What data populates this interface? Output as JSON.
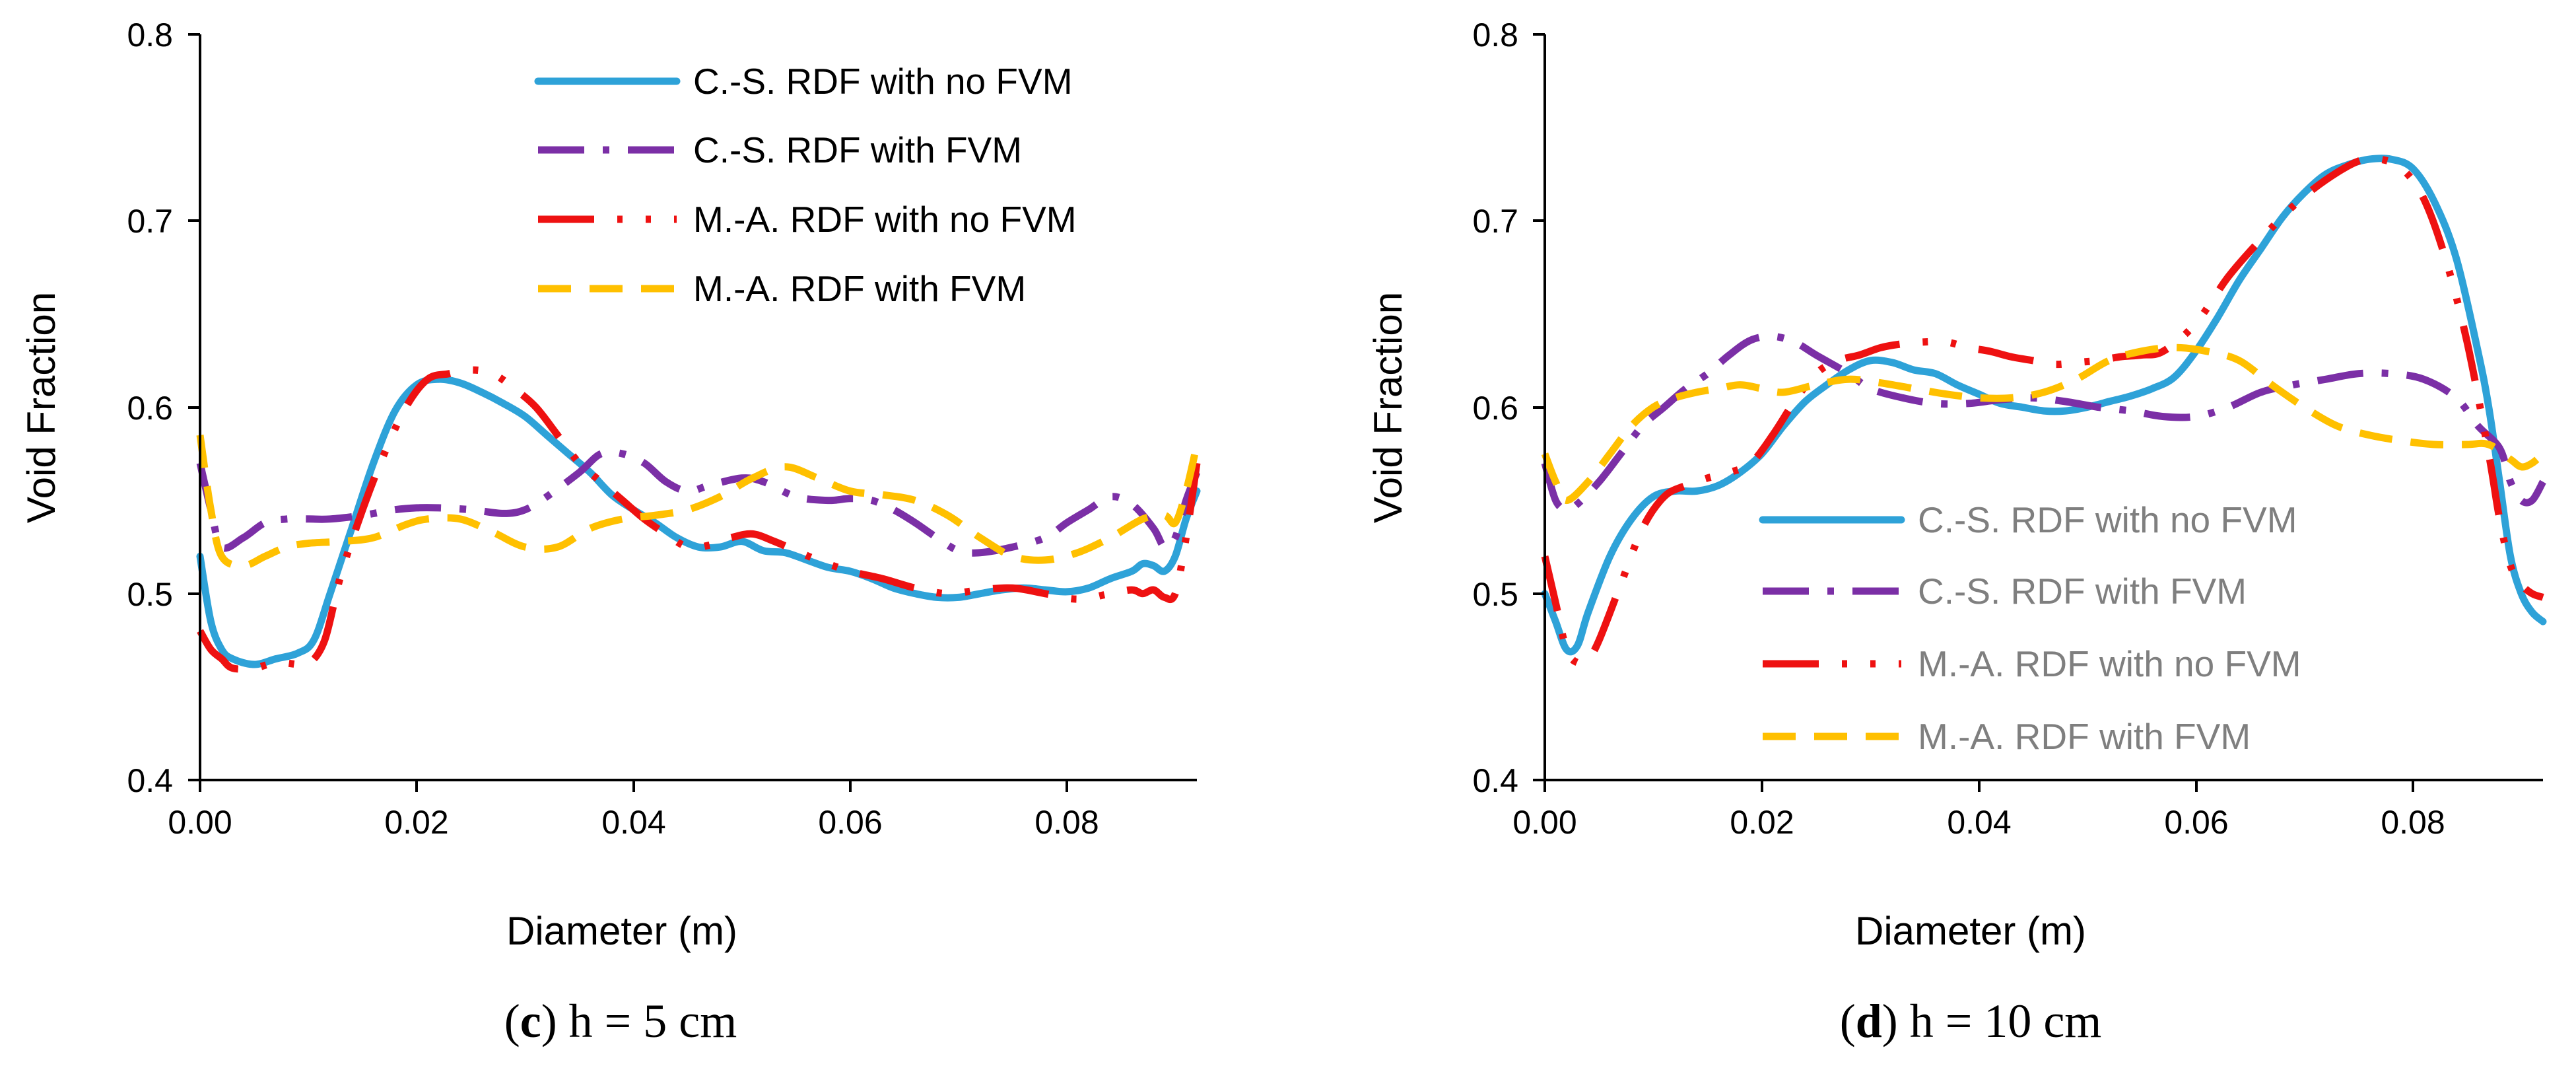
{
  "colors": {
    "cs_no_fvm": "#2ea2d8",
    "cs_fvm": "#7b2fa6",
    "ma_no_fvm": "#ee1111",
    "ma_fvm": "#ffc000",
    "axis": "#000000",
    "legend_text_d": "#7f7f7f"
  },
  "chart_data": [
    {
      "type": "line",
      "caption_letter": "c",
      "caption_rest": " h = 5 cm",
      "xlabel": "Diameter (m)",
      "ylabel": "Void Fraction",
      "xlim": [
        0,
        0.092
      ],
      "ylim": [
        0.4,
        0.8
      ],
      "xticks": [
        0,
        0.02,
        0.04,
        0.06,
        0.08
      ],
      "xtick_labels": [
        "0.00",
        "0.02",
        "0.04",
        "0.06",
        "0.08"
      ],
      "yticks": [
        0.4,
        0.5,
        0.6,
        0.7,
        0.8
      ],
      "ytick_labels": [
        "0.4",
        "0.5",
        "0.6",
        "0.7",
        "0.8"
      ],
      "legend_position": "top-right",
      "series": [
        {
          "name": "C.-S. RDF with no FVM",
          "style": "solid",
          "color_key": "cs_no_fvm",
          "x": [
            0,
            0.001,
            0.002,
            0.003,
            0.005,
            0.007,
            0.009,
            0.0105,
            0.012,
            0.014,
            0.016,
            0.018,
            0.02,
            0.022,
            0.024,
            0.026,
            0.028,
            0.03,
            0.032,
            0.034,
            0.036,
            0.038,
            0.04,
            0.042,
            0.044,
            0.046,
            0.048,
            0.05,
            0.052,
            0.054,
            0.056,
            0.058,
            0.06,
            0.062,
            0.064,
            0.066,
            0.068,
            0.07,
            0.072,
            0.074,
            0.076,
            0.078,
            0.08,
            0.082,
            0.084,
            0.086,
            0.087,
            0.088,
            0.089,
            0.09,
            0.091,
            0.092
          ],
          "y": [
            0.52,
            0.485,
            0.47,
            0.465,
            0.462,
            0.465,
            0.468,
            0.475,
            0.5,
            0.535,
            0.57,
            0.598,
            0.612,
            0.615,
            0.613,
            0.608,
            0.602,
            0.595,
            0.585,
            0.575,
            0.565,
            0.553,
            0.545,
            0.538,
            0.53,
            0.525,
            0.525,
            0.528,
            0.523,
            0.522,
            0.518,
            0.514,
            0.512,
            0.508,
            0.503,
            0.5,
            0.498,
            0.498,
            0.5,
            0.502,
            0.503,
            0.502,
            0.501,
            0.503,
            0.508,
            0.512,
            0.516,
            0.515,
            0.512,
            0.52,
            0.54,
            0.555
          ]
        },
        {
          "name": "C.-S. RDF with FVM",
          "style": "dashdot",
          "color_key": "cs_fvm",
          "x": [
            0,
            0.001,
            0.002,
            0.004,
            0.006,
            0.008,
            0.01,
            0.012,
            0.015,
            0.018,
            0.02,
            0.022,
            0.025,
            0.028,
            0.03,
            0.032,
            0.035,
            0.037,
            0.039,
            0.041,
            0.043,
            0.045,
            0.047,
            0.05,
            0.052,
            0.055,
            0.058,
            0.06,
            0.062,
            0.064,
            0.066,
            0.068,
            0.07,
            0.072,
            0.075,
            0.078,
            0.08,
            0.082,
            0.084,
            0.086,
            0.088,
            0.089,
            0.09,
            0.091,
            0.092
          ],
          "y": [
            0.57,
            0.545,
            0.525,
            0.53,
            0.538,
            0.54,
            0.54,
            0.54,
            0.542,
            0.545,
            0.546,
            0.546,
            0.545,
            0.543,
            0.545,
            0.552,
            0.565,
            0.575,
            0.575,
            0.57,
            0.56,
            0.555,
            0.558,
            0.562,
            0.56,
            0.552,
            0.55,
            0.551,
            0.55,
            0.545,
            0.538,
            0.53,
            0.523,
            0.522,
            0.525,
            0.53,
            0.538,
            0.545,
            0.552,
            0.548,
            0.535,
            0.525,
            0.53,
            0.55,
            0.565
          ]
        },
        {
          "name": "M.-A. RDF with no FVM",
          "style": "longdashdot",
          "color_key": "ma_no_fvm",
          "x": [
            0,
            0.001,
            0.002,
            0.003,
            0.005,
            0.007,
            0.009,
            0.01,
            0.0115,
            0.013,
            0.015,
            0.017,
            0.019,
            0.021,
            0.023,
            0.025,
            0.027,
            0.029,
            0.031,
            0.033,
            0.035,
            0.037,
            0.039,
            0.041,
            0.043,
            0.045,
            0.047,
            0.049,
            0.051,
            0.053,
            0.055,
            0.057,
            0.06,
            0.063,
            0.066,
            0.069,
            0.072,
            0.075,
            0.078,
            0.081,
            0.084,
            0.086,
            0.087,
            0.088,
            0.089,
            0.09,
            0.091,
            0.092
          ],
          "y": [
            0.48,
            0.47,
            0.465,
            0.46,
            0.46,
            0.463,
            0.462,
            0.462,
            0.475,
            0.51,
            0.545,
            0.575,
            0.6,
            0.615,
            0.618,
            0.62,
            0.618,
            0.61,
            0.6,
            0.585,
            0.57,
            0.56,
            0.55,
            0.54,
            0.532,
            0.525,
            0.526,
            0.53,
            0.532,
            0.528,
            0.523,
            0.518,
            0.512,
            0.508,
            0.503,
            0.5,
            0.502,
            0.503,
            0.5,
            0.497,
            0.5,
            0.502,
            0.5,
            0.502,
            0.498,
            0.5,
            0.53,
            0.57
          ]
        },
        {
          "name": "M.-A. RDF with FVM",
          "style": "dash",
          "color_key": "ma_fvm",
          "x": [
            0,
            0.001,
            0.002,
            0.004,
            0.006,
            0.008,
            0.01,
            0.013,
            0.016,
            0.019,
            0.021,
            0.024,
            0.027,
            0.03,
            0.033,
            0.036,
            0.039,
            0.042,
            0.045,
            0.048,
            0.051,
            0.054,
            0.057,
            0.06,
            0.063,
            0.066,
            0.069,
            0.072,
            0.075,
            0.078,
            0.081,
            0.084,
            0.087,
            0.089,
            0.09,
            0.091,
            0.092
          ],
          "y": [
            0.585,
            0.545,
            0.52,
            0.515,
            0.52,
            0.525,
            0.527,
            0.528,
            0.53,
            0.537,
            0.54,
            0.54,
            0.533,
            0.525,
            0.525,
            0.535,
            0.54,
            0.542,
            0.545,
            0.552,
            0.562,
            0.568,
            0.562,
            0.555,
            0.553,
            0.55,
            0.542,
            0.53,
            0.52,
            0.518,
            0.522,
            0.53,
            0.54,
            0.542,
            0.538,
            0.555,
            0.58
          ]
        }
      ]
    },
    {
      "type": "line",
      "caption_letter": "d",
      "caption_rest": " h = 10 cm",
      "xlabel": "Diameter (m)",
      "ylabel": "Void Fraction",
      "xlim": [
        0,
        0.092
      ],
      "ylim": [
        0.4,
        0.8
      ],
      "xticks": [
        0,
        0.02,
        0.04,
        0.06,
        0.08
      ],
      "xtick_labels": [
        "0.00",
        "0.02",
        "0.04",
        "0.06",
        "0.08"
      ],
      "yticks": [
        0.4,
        0.5,
        0.6,
        0.7,
        0.8
      ],
      "ytick_labels": [
        "0.4",
        "0.5",
        "0.6",
        "0.7",
        "0.8"
      ],
      "legend_position": "bottom-right",
      "series": [
        {
          "name": "C.-S. RDF with no FVM",
          "style": "solid",
          "color_key": "cs_no_fvm",
          "x": [
            0,
            0.001,
            0.002,
            0.003,
            0.004,
            0.006,
            0.008,
            0.01,
            0.012,
            0.014,
            0.016,
            0.018,
            0.02,
            0.022,
            0.024,
            0.026,
            0.028,
            0.03,
            0.032,
            0.034,
            0.036,
            0.038,
            0.04,
            0.042,
            0.044,
            0.046,
            0.048,
            0.05,
            0.052,
            0.054,
            0.056,
            0.058,
            0.06,
            0.062,
            0.064,
            0.066,
            0.068,
            0.07,
            0.072,
            0.074,
            0.076,
            0.078,
            0.08,
            0.082,
            0.084,
            0.086,
            0.087,
            0.088,
            0.089,
            0.09,
            0.091,
            0.092
          ],
          "y": [
            0.5,
            0.485,
            0.47,
            0.472,
            0.49,
            0.52,
            0.54,
            0.552,
            0.555,
            0.555,
            0.558,
            0.565,
            0.575,
            0.59,
            0.603,
            0.612,
            0.62,
            0.625,
            0.624,
            0.62,
            0.618,
            0.612,
            0.607,
            0.602,
            0.6,
            0.598,
            0.598,
            0.6,
            0.603,
            0.606,
            0.61,
            0.616,
            0.63,
            0.648,
            0.668,
            0.685,
            0.702,
            0.715,
            0.725,
            0.73,
            0.733,
            0.733,
            0.728,
            0.71,
            0.68,
            0.63,
            0.6,
            0.56,
            0.52,
            0.5,
            0.49,
            0.485
          ]
        },
        {
          "name": "C.-S. RDF with FVM",
          "style": "dashdot",
          "color_key": "cs_fvm",
          "x": [
            0,
            0.001,
            0.002,
            0.003,
            0.005,
            0.007,
            0.009,
            0.011,
            0.013,
            0.015,
            0.017,
            0.019,
            0.021,
            0.023,
            0.025,
            0.028,
            0.03,
            0.033,
            0.036,
            0.039,
            0.042,
            0.045,
            0.048,
            0.051,
            0.054,
            0.057,
            0.06,
            0.063,
            0.066,
            0.069,
            0.072,
            0.075,
            0.078,
            0.081,
            0.084,
            0.086,
            0.088,
            0.089,
            0.09,
            0.091,
            0.092
          ],
          "y": [
            0.57,
            0.55,
            0.545,
            0.548,
            0.56,
            0.575,
            0.59,
            0.6,
            0.61,
            0.618,
            0.628,
            0.636,
            0.638,
            0.635,
            0.628,
            0.618,
            0.61,
            0.605,
            0.602,
            0.602,
            0.604,
            0.605,
            0.603,
            0.6,
            0.598,
            0.595,
            0.595,
            0.6,
            0.608,
            0.612,
            0.615,
            0.618,
            0.618,
            0.615,
            0.605,
            0.59,
            0.578,
            0.56,
            0.55,
            0.55,
            0.56
          ]
        },
        {
          "name": "M.-A. RDF with no FVM",
          "style": "longdashdot",
          "color_key": "ma_no_fvm",
          "x": [
            0,
            0.001,
            0.002,
            0.003,
            0.004,
            0.005,
            0.007,
            0.009,
            0.011,
            0.013,
            0.015,
            0.017,
            0.019,
            0.021,
            0.023,
            0.025,
            0.027,
            0.029,
            0.031,
            0.033,
            0.035,
            0.037,
            0.039,
            0.041,
            0.043,
            0.045,
            0.047,
            0.049,
            0.051,
            0.053,
            0.055,
            0.057,
            0.06,
            0.063,
            0.066,
            0.069,
            0.072,
            0.075,
            0.077,
            0.079,
            0.081,
            0.083,
            0.085,
            0.087,
            0.088,
            0.089,
            0.09,
            0.091,
            0.092
          ],
          "y": [
            0.52,
            0.495,
            0.47,
            0.463,
            0.465,
            0.475,
            0.505,
            0.535,
            0.552,
            0.558,
            0.562,
            0.565,
            0.57,
            0.585,
            0.603,
            0.618,
            0.625,
            0.628,
            0.632,
            0.634,
            0.635,
            0.635,
            0.632,
            0.63,
            0.627,
            0.625,
            0.623,
            0.624,
            0.625,
            0.627,
            0.628,
            0.63,
            0.645,
            0.67,
            0.69,
            0.708,
            0.722,
            0.732,
            0.733,
            0.728,
            0.712,
            0.68,
            0.635,
            0.575,
            0.54,
            0.515,
            0.505,
            0.5,
            0.498
          ]
        },
        {
          "name": "M.-A. RDF with FVM",
          "style": "dash",
          "color_key": "ma_fvm",
          "x": [
            0,
            0.001,
            0.002,
            0.004,
            0.006,
            0.008,
            0.01,
            0.012,
            0.014,
            0.016,
            0.018,
            0.02,
            0.022,
            0.025,
            0.028,
            0.031,
            0.034,
            0.037,
            0.04,
            0.043,
            0.046,
            0.049,
            0.052,
            0.055,
            0.058,
            0.061,
            0.064,
            0.067,
            0.07,
            0.073,
            0.076,
            0.079,
            0.082,
            0.085,
            0.087,
            0.089,
            0.09,
            0.091,
            0.092
          ],
          "y": [
            0.575,
            0.56,
            0.55,
            0.56,
            0.575,
            0.59,
            0.6,
            0.605,
            0.608,
            0.61,
            0.612,
            0.61,
            0.608,
            0.612,
            0.615,
            0.613,
            0.61,
            0.607,
            0.605,
            0.605,
            0.608,
            0.615,
            0.625,
            0.63,
            0.632,
            0.63,
            0.625,
            0.612,
            0.6,
            0.59,
            0.585,
            0.582,
            0.58,
            0.58,
            0.58,
            0.572,
            0.568,
            0.57,
            0.575
          ]
        }
      ]
    }
  ]
}
